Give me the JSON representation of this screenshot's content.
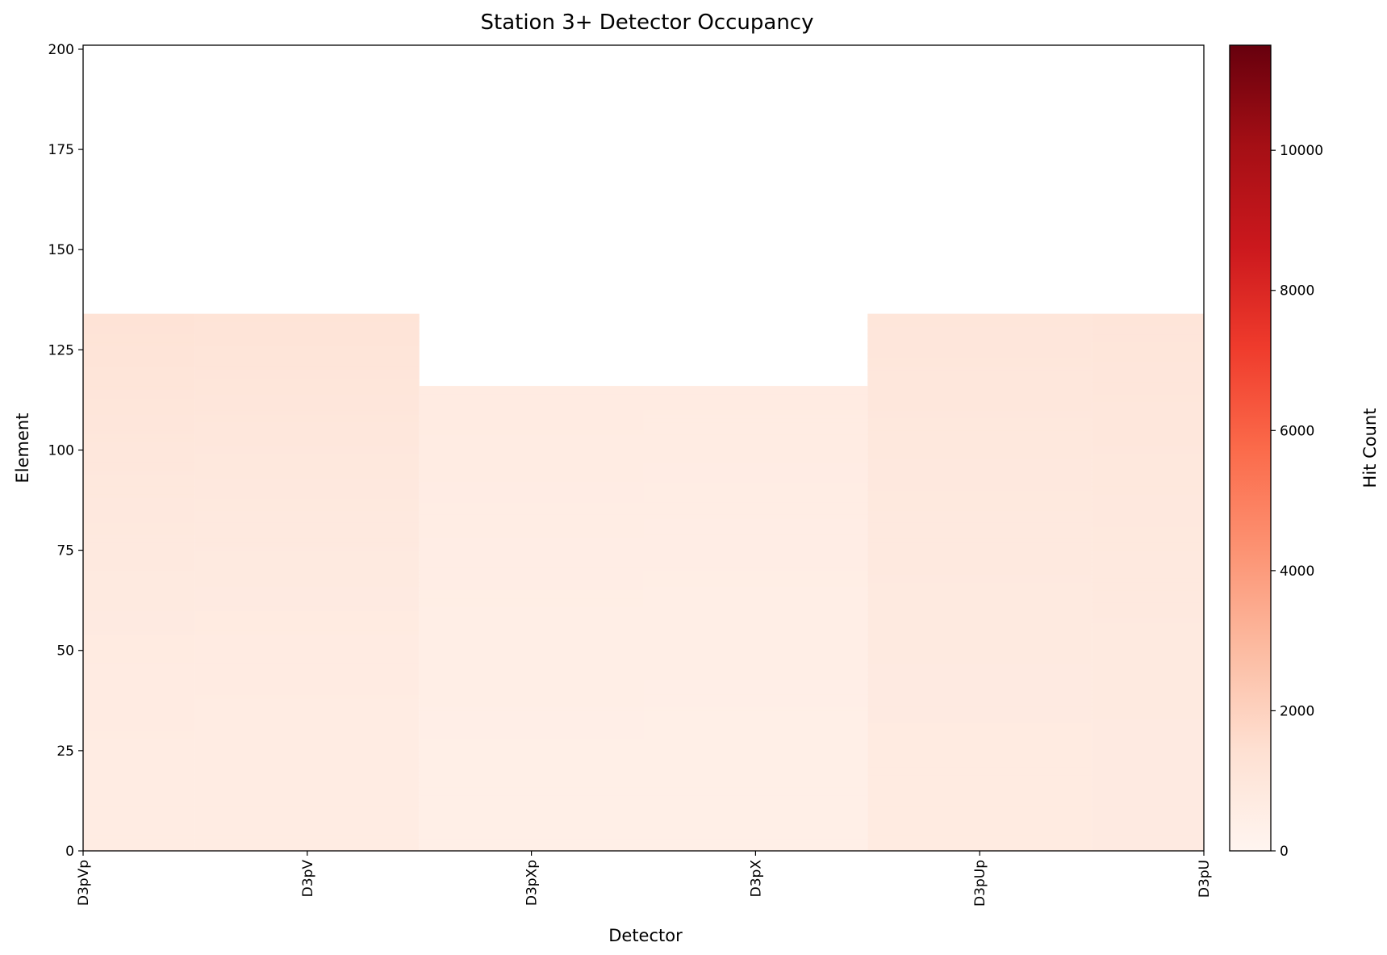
{
  "chart_data": {
    "type": "heatmap",
    "title": "Station 3+ Detector Occupancy",
    "xlabel": "Detector",
    "ylabel": "Element",
    "detectors": [
      "D3pVp",
      "D3pV",
      "D3pXp",
      "D3pX",
      "D3pUp",
      "D3pU"
    ],
    "ylim": [
      0,
      201
    ],
    "yticks": [
      0,
      25,
      50,
      75,
      100,
      125,
      150,
      175,
      200
    ],
    "colorbar": {
      "label": "Hit Count",
      "range": [
        0,
        11500
      ],
      "ticks": [
        0,
        2000,
        4000,
        6000,
        8000,
        10000
      ],
      "colormap": "Reds"
    },
    "columns": [
      {
        "detector": "D3pVp",
        "x": [
          0,
          0.5
        ],
        "max_element": 134,
        "count_low": 620,
        "count_high": 1250
      },
      {
        "detector": "D3pV",
        "x": [
          0.5,
          1.5
        ],
        "max_element": 134,
        "count_low": 600,
        "count_high": 1200
      },
      {
        "detector": "D3pXp",
        "x": [
          1.5,
          2.5
        ],
        "max_element": 116,
        "count_low": 430,
        "count_high": 700
      },
      {
        "detector": "D3pX",
        "x": [
          2.5,
          3.5
        ],
        "max_element": 116,
        "count_low": 420,
        "count_high": 680
      },
      {
        "detector": "D3pUp",
        "x": [
          3.5,
          4.5
        ],
        "max_element": 134,
        "count_low": 700,
        "count_high": 1050
      },
      {
        "detector": "D3pU",
        "x": [
          4.5,
          5.0
        ],
        "max_element": 134,
        "count_low": 720,
        "count_high": 1100
      }
    ]
  }
}
